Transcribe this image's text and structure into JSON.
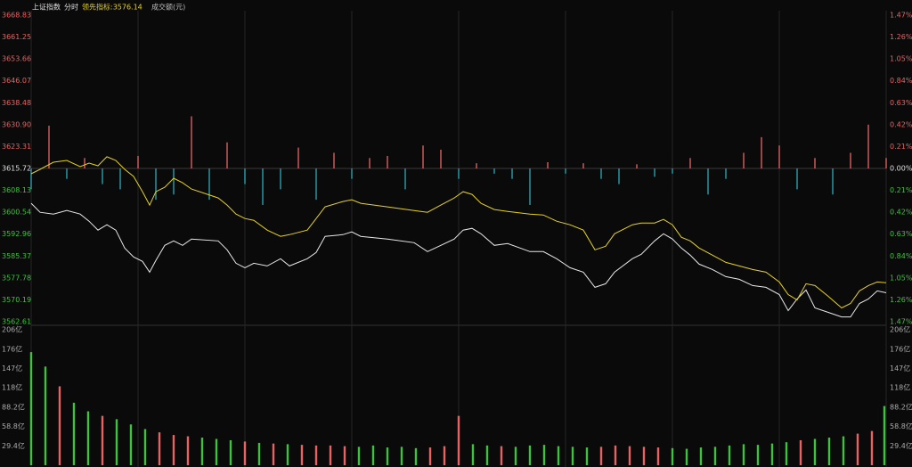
{
  "chart_data": {
    "type": "line",
    "title": "上证指数",
    "tab": "分时",
    "indicator_label": "领先指标:3576.14",
    "volume_label": "成交额(元)",
    "xlim": [
      0,
      240
    ],
    "xticks": [
      0,
      30,
      60,
      90,
      120,
      150,
      180,
      210,
      240
    ],
    "grid": true,
    "x": [
      0,
      2.5,
      6.25,
      10,
      13.75,
      16.25,
      18.75,
      21.25,
      23.75,
      26.25,
      28.75,
      31.25,
      33.25,
      35,
      37.5,
      40,
      42.5,
      45,
      52.5,
      55,
      57.5,
      60,
      62.5,
      66.25,
      70,
      72.5,
      77.5,
      80,
      82.5,
      87.5,
      90,
      92.5,
      100,
      107.5,
      111.25,
      115,
      118.75,
      121.25,
      123.75,
      126.25,
      130,
      133.75,
      140,
      143.75,
      147.5,
      151.25,
      155,
      158.25,
      161.25,
      163.75,
      168.75,
      171.25,
      175,
      177.5,
      180,
      182.5,
      185,
      187.5,
      191.25,
      195,
      198.75,
      202.5,
      206.25,
      210,
      212.5,
      215,
      217.5,
      220,
      223.75,
      227.5,
      230,
      232.5,
      235,
      237.5,
      240
    ],
    "series": [
      {
        "color": "#e8e8e8",
        "values": [
          3603.64,
          3600.54,
          3599.92,
          3601.16,
          3599.92,
          3597.44,
          3594.34,
          3596.2,
          3594.34,
          3588.15,
          3585.05,
          3583.5,
          3579.78,
          3583.81,
          3589.08,
          3590.63,
          3589.08,
          3591.25,
          3590.63,
          3587.53,
          3582.88,
          3581.33,
          3582.88,
          3581.95,
          3584.43,
          3581.95,
          3584.43,
          3586.6,
          3592.18,
          3592.79,
          3593.72,
          3592.18,
          3591.25,
          3590.01,
          3586.91,
          3589.08,
          3591.25,
          3594.34,
          3594.96,
          3593.1,
          3589.08,
          3589.7,
          3586.91,
          3586.91,
          3584.43,
          3581.33,
          3579.78,
          3574.52,
          3575.76,
          3579.78,
          3584.43,
          3585.98,
          3590.63,
          3593.1,
          3591.25,
          3588.15,
          3585.67,
          3582.57,
          3580.71,
          3578.23,
          3577.3,
          3575.14,
          3574.52,
          3572.04,
          3566.46,
          3570.49,
          3573.59,
          3567.39,
          3565.84,
          3564.29,
          3564.29,
          3568.94,
          3570.49,
          3573.28,
          3572.66
        ]
      },
      {
        "color": "#e6d21e",
        "values": [
          3613.86,
          3615.41,
          3617.89,
          3618.51,
          3616.34,
          3617.58,
          3616.65,
          3619.75,
          3618.51,
          3615.41,
          3612.93,
          3607.67,
          3603.02,
          3607.67,
          3609.21,
          3612.31,
          3610.76,
          3608.59,
          3605.5,
          3603.02,
          3599.92,
          3598.37,
          3597.75,
          3594.34,
          3592.18,
          3592.79,
          3594.34,
          3598.37,
          3602.4,
          3604.26,
          3604.88,
          3603.64,
          3602.4,
          3601.16,
          3600.54,
          3603.02,
          3605.5,
          3607.67,
          3606.74,
          3603.64,
          3601.47,
          3600.85,
          3599.92,
          3599.61,
          3597.44,
          3596.2,
          3594.34,
          3587.53,
          3588.77,
          3593.1,
          3596.2,
          3596.82,
          3596.82,
          3598.06,
          3596.2,
          3591.87,
          3590.63,
          3588.15,
          3585.67,
          3583.19,
          3581.95,
          3580.71,
          3579.78,
          3576.38,
          3572.04,
          3570.18,
          3575.76,
          3575.14,
          3571.42,
          3567.39,
          3568.94,
          3573.28,
          3575.14,
          3576.38,
          3576.14
        ]
      }
    ],
    "ylim": [
      3562.61,
      3668.83
    ],
    "yticks": [
      3668.83,
      3661.25,
      3653.66,
      3646.07,
      3638.48,
      {
        "value": 3630.9,
        "label": "3630.90"
      },
      3623.31,
      3615.72,
      3608.13,
      3600.54,
      3592.96,
      3585.37,
      3577.78,
      3570.19,
      3562.61
    ],
    "y2lim": [
      -1.47,
      1.47
    ],
    "y2ticks": [
      {
        "value": 1.47,
        "label": "1.47%"
      },
      {
        "value": 1.26,
        "label": "1.26%"
      },
      {
        "value": 1.05,
        "label": "1.05%"
      },
      {
        "value": 0.84,
        "label": "0.84%"
      },
      {
        "value": 0.63,
        "label": "0.63%"
      },
      {
        "value": 0.42,
        "label": "0.42%"
      },
      {
        "value": 0.21,
        "label": "0.21%"
      },
      {
        "value": 0,
        "label": "0.00%"
      },
      {
        "value": -0.21,
        "label": "0.21%"
      },
      {
        "value": -0.42,
        "label": "0.42%"
      },
      {
        "value": -0.63,
        "label": "0.63%"
      },
      {
        "value": -0.84,
        "label": "0.84%"
      },
      {
        "value": -1.05,
        "label": "1.05%"
      },
      {
        "value": -1.26,
        "label": "1.26%"
      },
      {
        "value": -1.47,
        "label": "1.47%"
      }
    ],
    "up_color": "#e86262",
    "down_color": "#3fc23f",
    "breadth": {
      "up_color": "#d86060",
      "down_color": "#2a9fae",
      "values": [
        -0.2,
        0.41,
        -0.1,
        0.1,
        -0.15,
        -0.2,
        0.12,
        -0.3,
        -0.25,
        0.5,
        -0.3,
        0.25,
        -0.15,
        -0.35,
        -0.2,
        0.2,
        -0.3,
        0.15,
        -0.1,
        0.1,
        0.12,
        -0.2,
        0.22,
        0.18,
        -0.1,
        0.05,
        -0.05,
        -0.1,
        -0.35,
        0.06,
        -0.05,
        0.05,
        -0.1,
        -0.15,
        0.04,
        -0.08,
        -0.05,
        0.1,
        -0.25,
        -0.1,
        0.15,
        0.3,
        0.22,
        -0.2,
        0.1,
        -0.25,
        0.15,
        0.42,
        0.1
      ]
    },
    "volume": {
      "values": [
        172,
        150,
        120,
        95,
        82,
        75,
        70,
        62,
        55,
        50,
        46,
        44,
        42,
        40,
        38,
        36,
        34,
        33,
        32,
        31,
        30,
        30,
        29,
        28,
        30,
        27,
        28,
        26,
        27,
        29,
        75,
        32,
        30,
        29,
        28,
        30,
        31,
        29,
        28,
        27,
        28,
        30,
        29,
        28,
        27,
        26,
        25,
        27,
        28,
        30,
        32,
        31,
        33,
        35,
        38,
        40,
        42,
        44,
        48,
        52,
        90
      ],
      "ylim": [
        0,
        206
      ],
      "yticks": [
        {
          "value": 206,
          "label": "206亿"
        },
        {
          "value": 176,
          "label": "176亿"
        },
        {
          "value": 147,
          "label": "147亿"
        },
        {
          "value": 118,
          "label": "118亿"
        },
        {
          "value": 88.2,
          "label": "88.2亿"
        },
        {
          "value": 58.8,
          "label": "58.8亿"
        },
        {
          "value": 29.4,
          "label": "29.4亿"
        }
      ]
    }
  }
}
